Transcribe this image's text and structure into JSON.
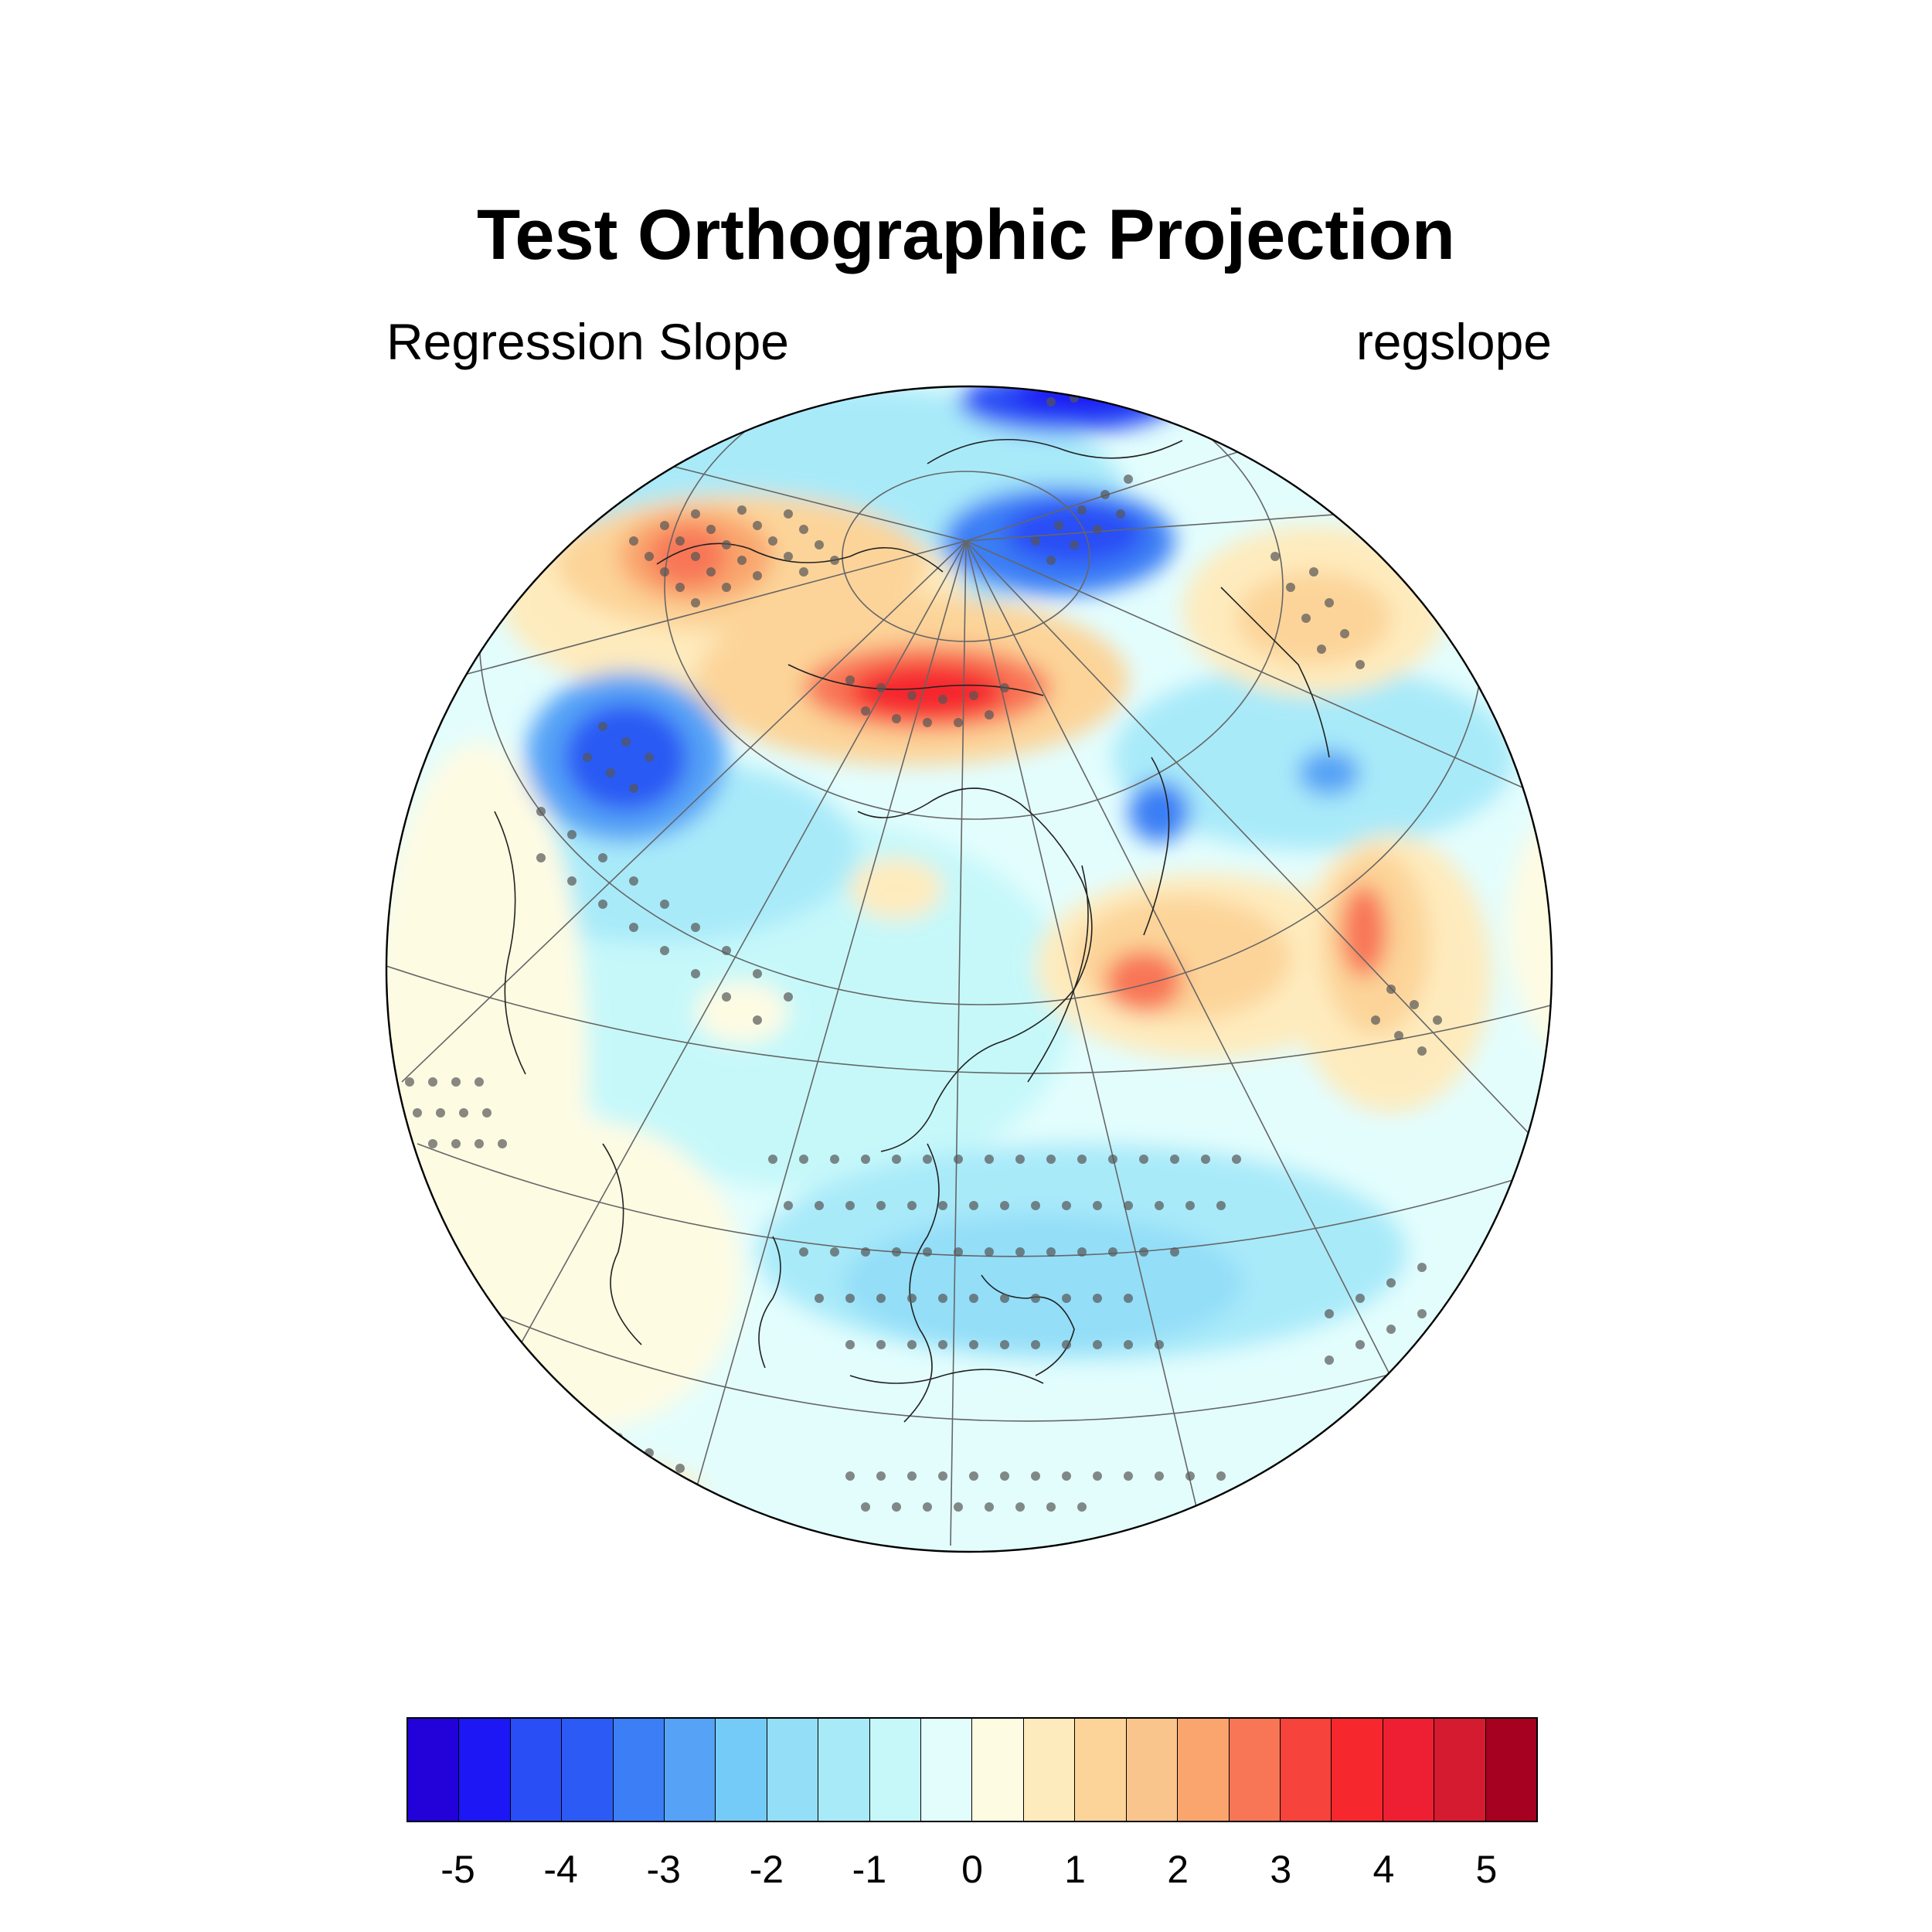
{
  "title": "Test Orthographic Projection",
  "left_subtitle": "Regression Slope",
  "right_subtitle": "regslope",
  "colorbar": {
    "colors": [
      "#2202d8",
      "#1c17f4",
      "#2a4ef5",
      "#2c5af4",
      "#3b7ef5",
      "#55a2f6",
      "#75cbf8",
      "#94def8",
      "#a9eaf9",
      "#c6f8fa",
      "#e3fdfd",
      "#fefbe3",
      "#feebbd",
      "#fcd499",
      "#fac58c",
      "#f9a56d",
      "#f87656",
      "#f6433b",
      "#f6282e",
      "#ef1f33",
      "#d51b2f",
      "#a60120"
    ],
    "tick_labels": [
      "-5",
      "-4",
      "-3",
      "-2",
      "-1",
      "0",
      "1",
      "2",
      "3",
      "4",
      "5"
    ]
  },
  "legend_values": {
    "levels": [
      -5,
      -4.5,
      -4,
      -3.5,
      -3,
      -2.5,
      -2,
      -1.5,
      -1,
      -0.5,
      0,
      0.5,
      1,
      1.5,
      2,
      2.5,
      3,
      3.5,
      4,
      4.5,
      5
    ]
  }
}
